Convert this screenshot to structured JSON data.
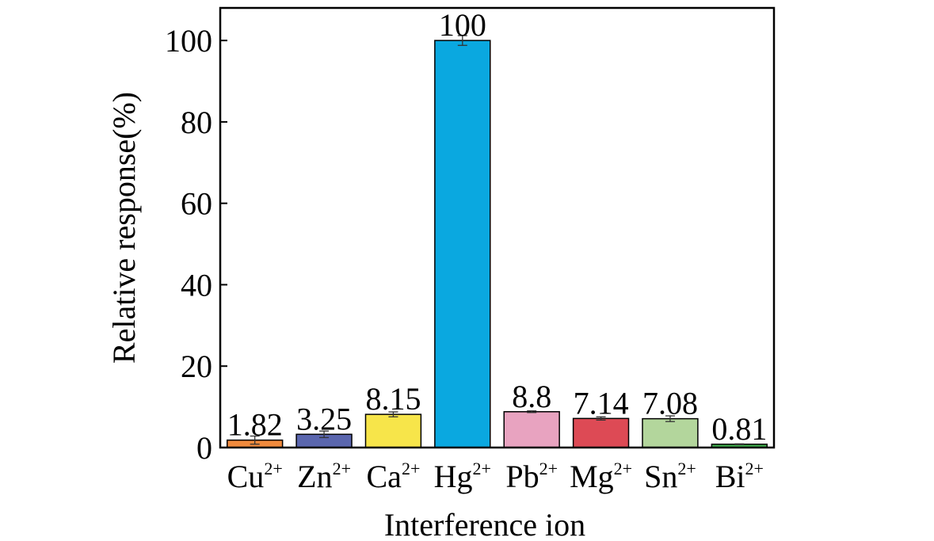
{
  "chart_data": {
    "type": "bar",
    "title": "",
    "xlabel": "Interference ion",
    "ylabel": "Relative response(%)",
    "ylim": [
      0,
      108
    ],
    "yticks": [
      0,
      20,
      40,
      60,
      80,
      100
    ],
    "grid": false,
    "categories": [
      {
        "base": "Cu",
        "sup": "2+"
      },
      {
        "base": "Zn",
        "sup": "2+"
      },
      {
        "base": "Ca",
        "sup": "2+"
      },
      {
        "base": "Hg",
        "sup": "2+"
      },
      {
        "base": "Pb",
        "sup": "2+"
      },
      {
        "base": "Mg",
        "sup": "2+"
      },
      {
        "base": "Sn",
        "sup": "2+"
      },
      {
        "base": "Bi",
        "sup": "2+"
      }
    ],
    "values": [
      1.82,
      3.25,
      8.15,
      100,
      8.8,
      7.14,
      7.08,
      0.81
    ],
    "value_labels": [
      "1.82",
      "3.25",
      "8.15",
      "100",
      "8.8",
      "7.14",
      "7.08",
      "0.81"
    ],
    "errors": [
      1.0,
      0.8,
      0.6,
      1.2,
      0.2,
      0.4,
      0.7,
      0.1
    ],
    "colors": [
      "#f08a3c",
      "#5a66ae",
      "#f7e54a",
      "#0aa8e0",
      "#e8a3c0",
      "#dd4a55",
      "#b3d69c",
      "#3fae4c"
    ]
  }
}
